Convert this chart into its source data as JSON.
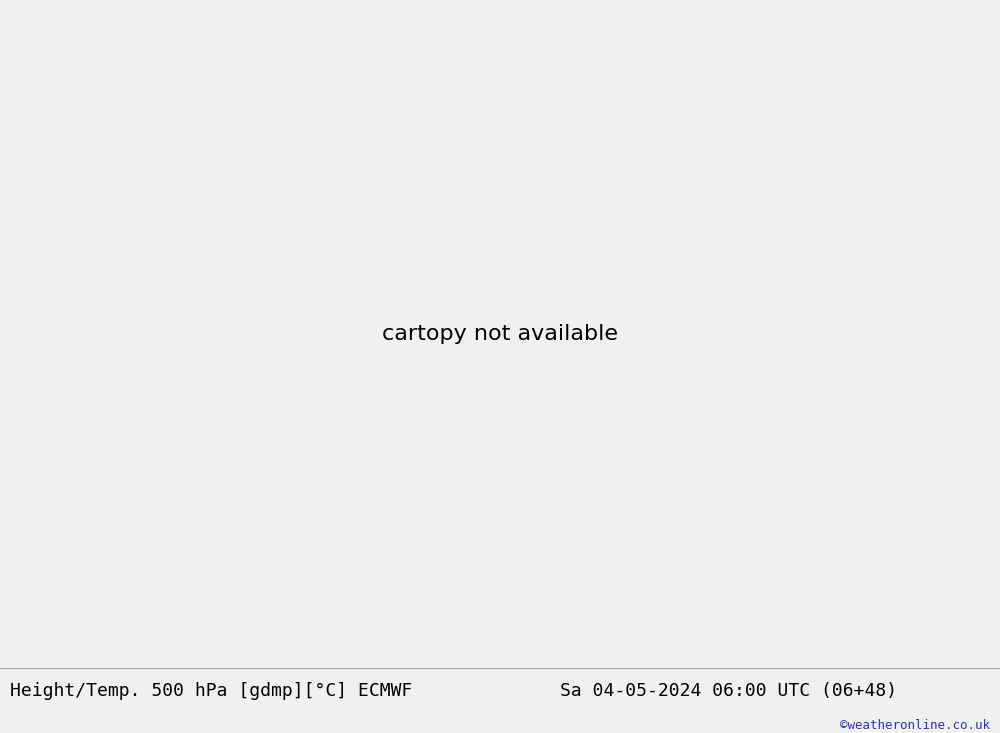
{
  "title_left": "Height/Temp. 500 hPa [gdmp][°C] ECMWF",
  "title_right": "Sa 04-05-2024 06:00 UTC (06+48)",
  "copyright": "©weatheronline.co.uk",
  "fig_width": 10.0,
  "fig_height": 7.33,
  "dpi": 100,
  "map_extent": [
    85,
    175,
    -15,
    55
  ],
  "ocean_color": "#d8d8d8",
  "land_color": "#90ee90",
  "border_color": "#999999",
  "coastline_color": "#666666",
  "bottom_bar_color": "#f0f0f0",
  "bottom_text_color": "#000000",
  "copyright_color": "#3333bb",
  "title_fontsize": 13,
  "copyright_fontsize": 9,
  "black_contour_color": "#000000",
  "red_contour_color": "#dd2222",
  "orange_contour_color": "#ff8800",
  "green_contour_color": "#88cc00",
  "teal_contour_color": "#00aaaa",
  "contour_linewidth": 2.0,
  "contour_label_fontsize": 9
}
